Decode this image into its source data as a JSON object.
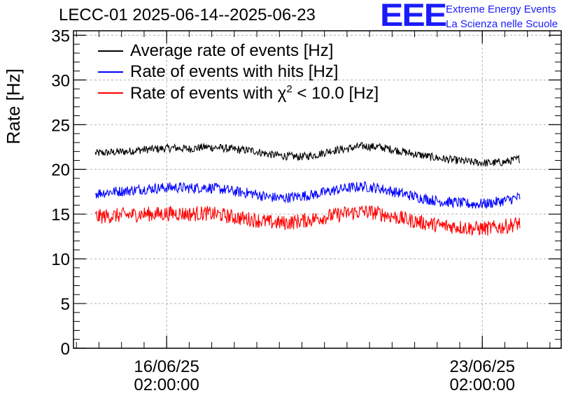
{
  "title": "LECC-01 2025-06-14--2025-06-23",
  "logo": {
    "mark": "EEE",
    "line1": "Extreme Energy Events",
    "line2": "La Scienza nelle Scuole",
    "color": "#1a1aff"
  },
  "chart_data": {
    "type": "line",
    "ylabel": "Rate [Hz]",
    "ylim": [
      0,
      35.5
    ],
    "yticks": [
      "0",
      "5",
      "10",
      "15",
      "20",
      "25",
      "30",
      "35"
    ],
    "xlim": [
      "2025-06-14T00:25:00",
      "2025-06-24T20:00:00"
    ],
    "xticks": [
      {
        "date": "2025-06-16T02:00:00",
        "line1": "16/06/25",
        "line2": "02:00:00"
      },
      {
        "date": "2025-06-23T02:00:00",
        "line1": "23/06/25",
        "line2": "02:00:00"
      }
    ],
    "grid": true,
    "legend_position": "top-left",
    "x_start": "2025-06-14T12:00:00",
    "x_end": "2025-06-23T22:00:00",
    "series": [
      {
        "name": "Average rate of events [Hz]",
        "color": "#000000",
        "label_main": "Average rate of events [Hz]",
        "values": [
          21.8,
          21.9,
          22.0,
          22.2,
          22.3,
          22.4,
          22.3,
          22.5,
          22.4,
          22.2,
          22.1,
          21.7,
          21.5,
          21.4,
          21.6,
          22.1,
          22.3,
          22.6,
          22.5,
          22.2,
          21.8,
          21.5,
          21.2,
          21.0,
          20.8,
          20.7,
          20.8,
          21.2
        ]
      },
      {
        "name": "Rate of events with hits [Hz]",
        "color": "#0000ff",
        "label_main": "Rate of events with hits [Hz]",
        "values": [
          17.3,
          17.5,
          17.6,
          17.8,
          17.9,
          18.0,
          17.9,
          18.0,
          17.8,
          17.5,
          17.3,
          16.9,
          16.8,
          17.0,
          17.2,
          17.6,
          17.9,
          18.1,
          17.9,
          17.5,
          17.1,
          16.7,
          16.4,
          16.3,
          16.1,
          16.2,
          16.5,
          16.9
        ]
      },
      {
        "name": "Rate of events with χ² < 10.0 [Hz]",
        "color": "#ff0000",
        "label_main": "Rate of events with χ",
        "label_sup": "2",
        "label_tail": " < 10.0 [Hz]",
        "values": [
          14.7,
          14.8,
          14.9,
          15.0,
          15.0,
          15.1,
          15.0,
          15.1,
          14.9,
          14.6,
          14.4,
          14.1,
          14.0,
          14.2,
          14.5,
          14.8,
          15.1,
          15.3,
          15.1,
          14.7,
          14.3,
          14.0,
          13.7,
          13.6,
          13.4,
          13.4,
          13.6,
          14.0
        ]
      }
    ]
  }
}
